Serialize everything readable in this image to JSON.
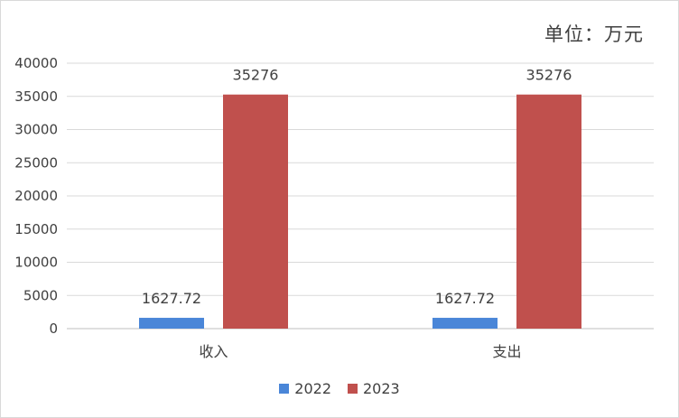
{
  "unit_label": "单位：万元",
  "chart_data": {
    "type": "bar",
    "categories": [
      "收入",
      "支出"
    ],
    "series": [
      {
        "name": "2022",
        "values": [
          1627.72,
          1627.72
        ],
        "color": "#4a86d8",
        "labels": [
          "1627.72",
          "1627.72"
        ]
      },
      {
        "name": "2023",
        "values": [
          35276,
          35276
        ],
        "color": "#c0504d",
        "labels": [
          "35276",
          "35276"
        ]
      }
    ],
    "ylim": [
      0,
      40000
    ],
    "yticks": [
      0,
      5000,
      10000,
      15000,
      20000,
      25000,
      30000,
      35000,
      40000
    ],
    "grid": true,
    "legend": "bottom"
  }
}
